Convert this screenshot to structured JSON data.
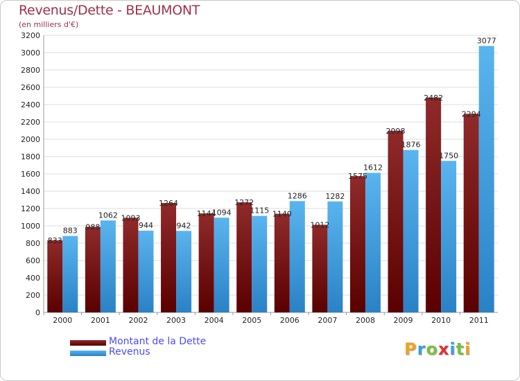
{
  "header": {
    "title": "Revenus/Dette - BEAUMONT",
    "subtitle": "(en milliers d'€)"
  },
  "legend": {
    "debt_label": "Montant de la Dette",
    "revenue_label": "Revenus"
  },
  "logo": {
    "text": "Proxiti",
    "letters": [
      {
        "ch": "P",
        "color": "#f0a020"
      },
      {
        "ch": "r",
        "color": "#3aa0e0"
      },
      {
        "ch": "o",
        "color": "#7ac040"
      },
      {
        "ch": "x",
        "color": "#e03030"
      },
      {
        "ch": "i",
        "color": "#3aa0e0"
      },
      {
        "ch": "t",
        "color": "#7ac040"
      },
      {
        "ch": "i",
        "color": "#f0a020"
      }
    ]
  },
  "colors": {
    "debt": "#8b1c1c",
    "debt_dark": "#5a0000",
    "revenue": "#5ab4ee",
    "revenue_dark": "#2a82c6",
    "grid": "#dddddd",
    "title": "#a0304a"
  },
  "chart_data": {
    "type": "bar",
    "title": "Revenus/Dette - BEAUMONT",
    "subtitle": "(en milliers d'€)",
    "xlabel": "",
    "ylabel": "",
    "ylim": [
      0,
      3200
    ],
    "ytick_step": 200,
    "grid": true,
    "legend_position": "bottom-left",
    "categories": [
      "2000",
      "2001",
      "2002",
      "2003",
      "2004",
      "2005",
      "2006",
      "2007",
      "2008",
      "2009",
      "2010",
      "2011"
    ],
    "series": [
      {
        "name": "Montant de la Dette",
        "values": [
          833,
          988,
          1093,
          1264,
          1144,
          1272,
          1140,
          1012,
          1575,
          2098,
          2482,
          2294
        ]
      },
      {
        "name": "Revenus",
        "values": [
          883,
          1062,
          944,
          942,
          1094,
          1115,
          1286,
          1282,
          1612,
          1876,
          1750,
          3077
        ]
      }
    ]
  }
}
